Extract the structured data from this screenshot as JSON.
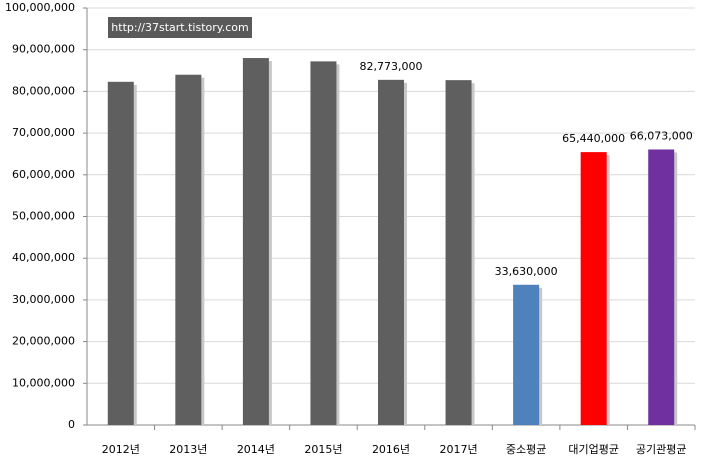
{
  "chart_data": {
    "type": "bar",
    "annotation": "http://37start.tistory.com",
    "categories": [
      "2012년",
      "2013년",
      "2014년",
      "2015년",
      "2016년",
      "2017년",
      "중소평균",
      "대기업평균",
      "공기관평균"
    ],
    "values": [
      82300000,
      84000000,
      88000000,
      87200000,
      82773000,
      82700000,
      33630000,
      65440000,
      66073000
    ],
    "value_labels": [
      null,
      null,
      null,
      null,
      "82,773,000",
      null,
      "33,630,000",
      "65,440,000",
      "66,073,000"
    ],
    "colors": [
      "#5f5f5f",
      "#5f5f5f",
      "#5f5f5f",
      "#5f5f5f",
      "#5f5f5f",
      "#5f5f5f",
      "#4f81bd",
      "#ff0000",
      "#7030a0"
    ],
    "ylim": [
      0,
      100000000
    ],
    "yticks": [
      0,
      {
        "value": 10000000,
        "label": "10,000,000"
      },
      {
        "value": 20000000,
        "label": "20,000,000"
      },
      {
        "value": 30000000,
        "label": "30,000,000"
      },
      {
        "value": 40000000,
        "label": "40,000,000"
      },
      {
        "value": 50000000,
        "label": "50,000,000"
      },
      {
        "value": 60000000,
        "label": "60,000,000"
      },
      {
        "value": 70000000,
        "label": "70,000,000"
      },
      {
        "value": 80000000,
        "label": "80,000,000"
      },
      {
        "value": 90000000,
        "label": "90,000,000"
      },
      {
        "value": 100000000,
        "label": "100,000,000"
      }
    ],
    "grid": true
  }
}
